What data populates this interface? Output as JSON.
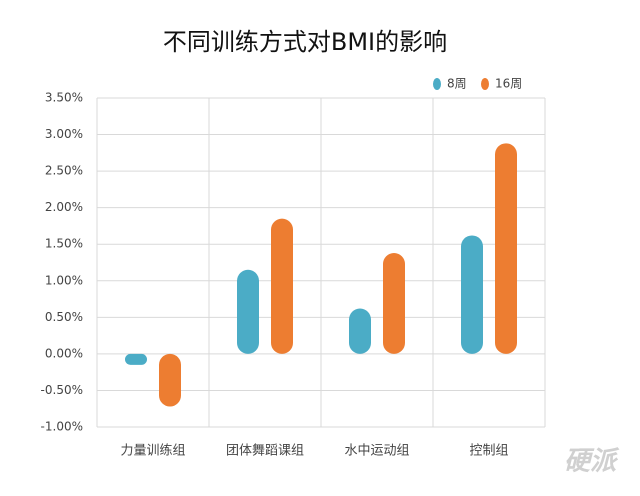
{
  "chart_data": {
    "type": "bar",
    "title": "不同训练方式对BMI的影响",
    "categories": [
      "力量训练组",
      "团体舞蹈课组",
      "水中运动组",
      "控制组"
    ],
    "series": [
      {
        "name": "8周",
        "color": "#4bacc6",
        "values": [
          -0.15,
          1.15,
          0.62,
          1.62
        ]
      },
      {
        "name": "16周",
        "color": "#ed7d31",
        "values": [
          -0.72,
          1.85,
          1.38,
          2.88
        ]
      }
    ],
    "ylim": [
      -1.0,
      3.5
    ],
    "yticks": [
      {
        "value": -1.0,
        "label": "-1.00%"
      },
      {
        "value": -0.5,
        "label": "-0.50%"
      },
      {
        "value": 0,
        "label": "0.00%"
      },
      {
        "value": 0.5,
        "label": "0.50%"
      },
      {
        "value": 1.0,
        "label": "1.00%"
      },
      {
        "value": 1.5,
        "label": "1.50%"
      },
      {
        "value": 2.0,
        "label": "2.00%"
      },
      {
        "value": 2.5,
        "label": "2.50%"
      },
      {
        "value": 3.0,
        "label": "3.00%"
      },
      {
        "value": 3.5,
        "label": "3.50%"
      }
    ],
    "grid": true,
    "legend": "top-right",
    "watermark": "硬派"
  }
}
